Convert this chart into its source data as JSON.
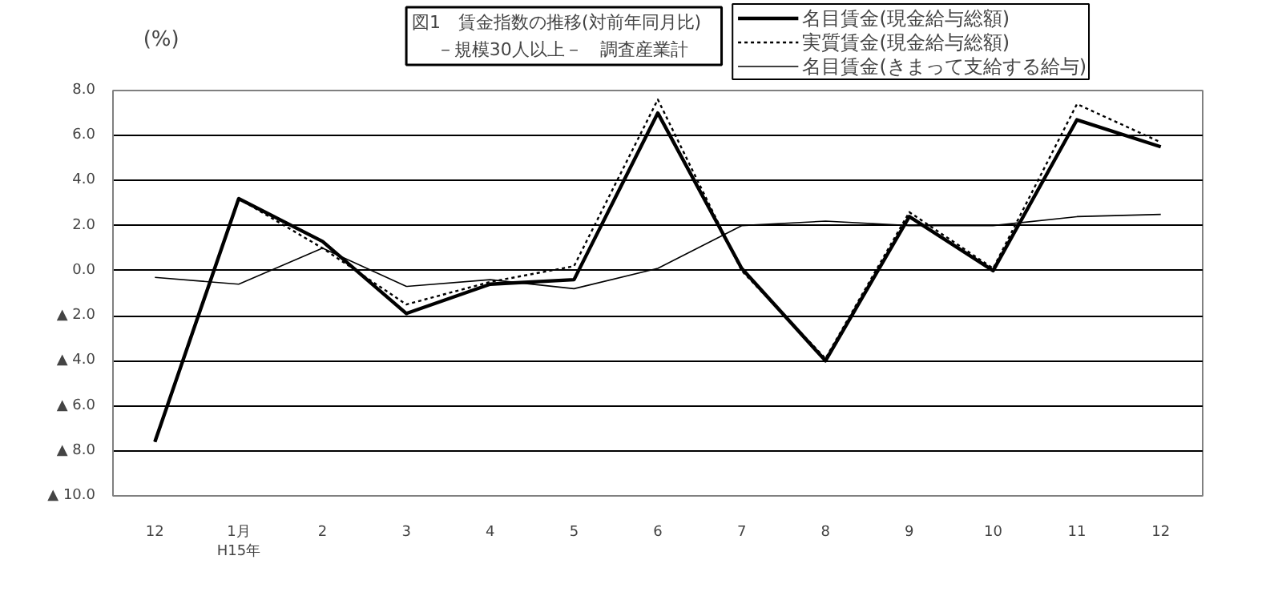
{
  "chart_data": {
    "type": "line",
    "title": "図1　賃金指数の推移(対前年同月比)",
    "subtitle": "－規模30人以上－　調査産業計",
    "ylabel": "(%)",
    "categories": [
      "12",
      "1月\nH15年",
      "2",
      "3",
      "4",
      "5",
      "6",
      "7",
      "8",
      "9",
      "10",
      "11",
      "12"
    ],
    "series": [
      {
        "name": "名目賃金(現金給与総額)",
        "color": "#000000",
        "line_style": "solid",
        "values": [
          -7.6,
          3.2,
          1.3,
          -1.9,
          -0.6,
          -0.4,
          7.0,
          0.1,
          -4.0,
          2.4,
          0.0,
          6.7,
          5.5
        ]
      },
      {
        "name": "実質賃金(現金給与総額)",
        "color": "#000000",
        "line_style": "dotted",
        "values": [
          -7.6,
          3.2,
          1.0,
          -1.5,
          -0.5,
          0.2,
          7.6,
          0.0,
          -3.9,
          2.6,
          0.1,
          7.4,
          5.7
        ]
      },
      {
        "name": "名目賃金(きまって支給する給与)",
        "color": "#000000",
        "line_style": "solid",
        "values": [
          -0.3,
          -0.6,
          1.0,
          -0.7,
          -0.4,
          -0.8,
          0.1,
          2.0,
          2.2,
          2.0,
          2.0,
          2.4,
          2.5
        ]
      }
    ],
    "ylim": [
      -10,
      8
    ],
    "yticks": [
      {
        "value": 8,
        "label": "8.0"
      },
      {
        "value": 6,
        "label": "6.0"
      },
      {
        "value": 4,
        "label": "4.0"
      },
      {
        "value": 2,
        "label": "2.0"
      },
      {
        "value": 0,
        "label": "0.0"
      },
      {
        "value": -2,
        "label": "▲ 2.0"
      },
      {
        "value": -4,
        "label": "▲ 4.0"
      },
      {
        "value": -6,
        "label": "▲ 6.0"
      },
      {
        "value": -8,
        "label": "▲ 8.0"
      },
      {
        "value": -10,
        "label": "▲ 10.0"
      }
    ],
    "grid": "y",
    "legend": "top right",
    "marker": "none"
  }
}
